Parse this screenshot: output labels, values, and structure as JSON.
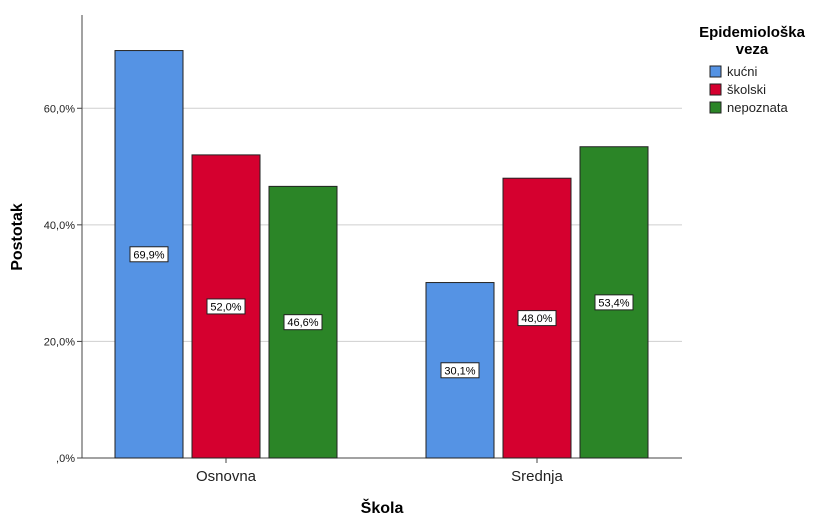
{
  "chart_data": {
    "type": "bar",
    "categories": [
      "Osnovna",
      "Srednja"
    ],
    "series": [
      {
        "name": "kućni",
        "values": [
          69.9,
          30.1
        ],
        "labels": [
          "69,9%",
          "30,1%"
        ],
        "color": "#5593e4"
      },
      {
        "name": "školski",
        "values": [
          52.0,
          48.0
        ],
        "labels": [
          "52,0%",
          "48,0%"
        ],
        "color": "#d5002f"
      },
      {
        "name": "nepoznata",
        "values": [
          46.6,
          53.4
        ],
        "labels": [
          "46,6%",
          "53,4%"
        ],
        "color": "#2b8527"
      }
    ],
    "xlabel": "Škola",
    "ylabel": "Postotak",
    "ylim": [
      0,
      76
    ],
    "yticks": [
      0,
      20,
      40,
      60
    ],
    "ytick_labels": [
      ",0%",
      "20,0%",
      "40,0%",
      "60,0%"
    ],
    "grid": true,
    "legend": {
      "title_lines": [
        "Epidemiološka",
        "veza"
      ],
      "placement": "top-right"
    }
  }
}
